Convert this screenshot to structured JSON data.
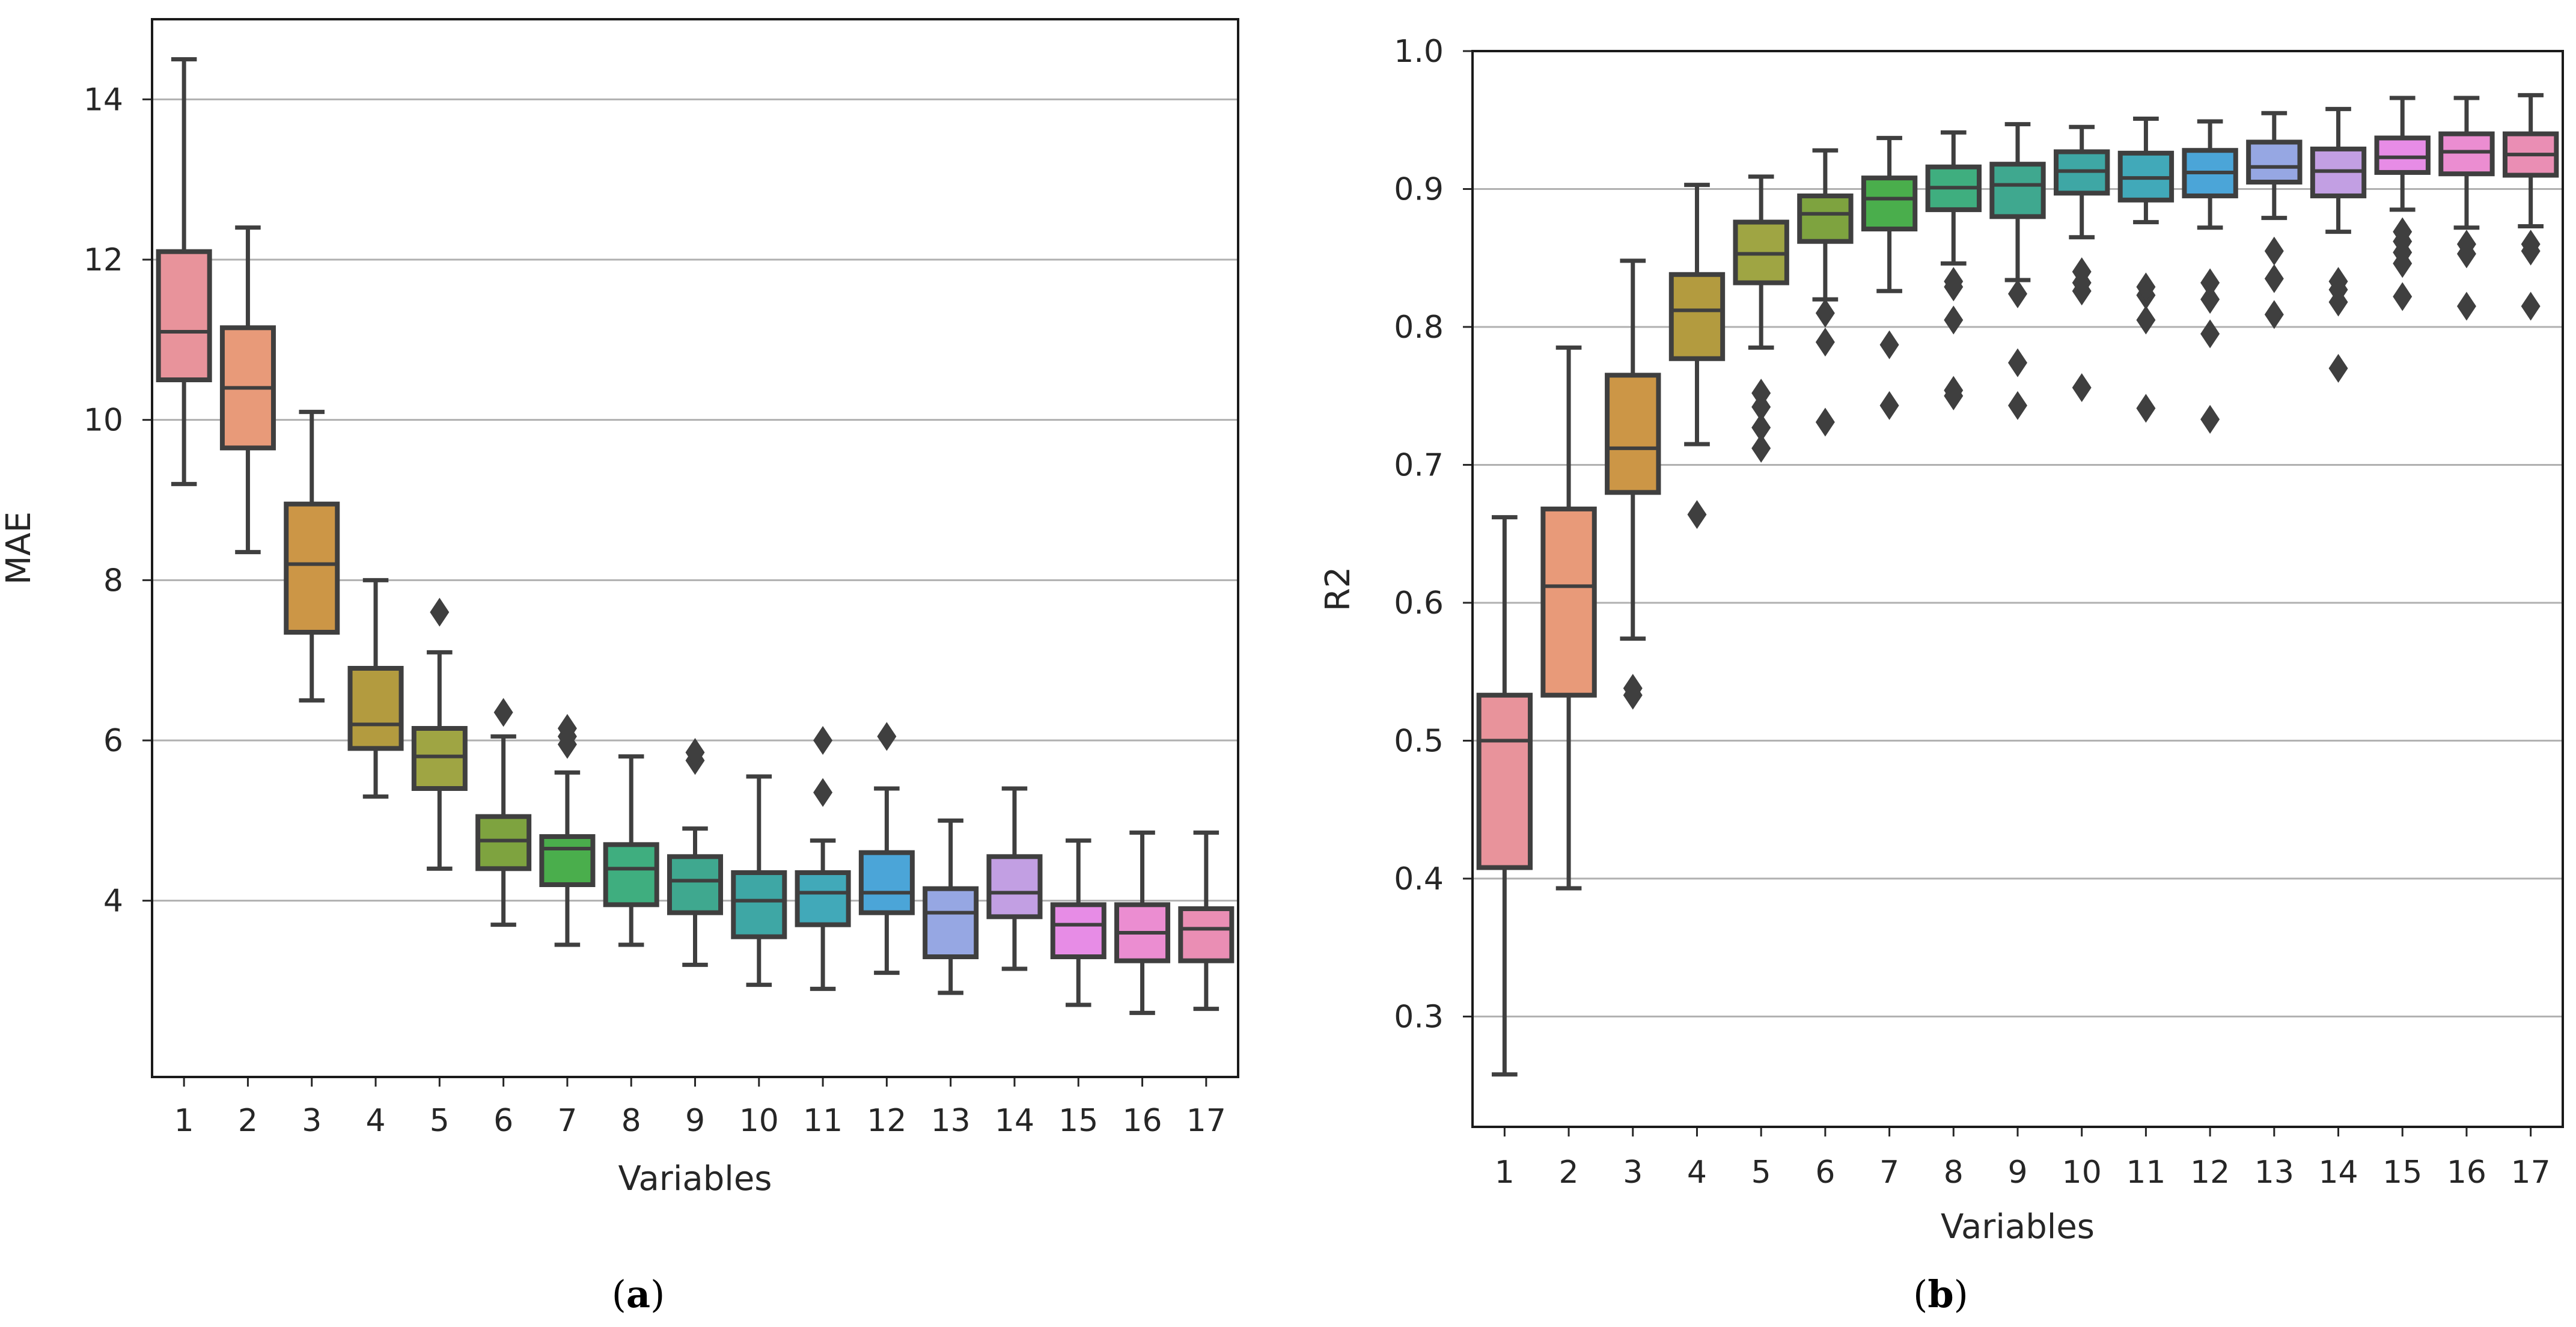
{
  "chart_data": [
    {
      "type": "boxplot",
      "panel_label": "a",
      "caption_open": "(",
      "caption_close": ")",
      "xlabel": "Variables",
      "ylabel": "MAE",
      "ylim": [
        1.8,
        15.0
      ],
      "yticks": [
        4,
        6,
        8,
        10,
        12,
        14
      ],
      "yticklabels": [
        "4",
        "6",
        "8",
        "10",
        "12",
        "14"
      ],
      "grid": "horizontal",
      "categories": [
        "1",
        "2",
        "3",
        "4",
        "5",
        "6",
        "7",
        "8",
        "9",
        "10",
        "11",
        "12",
        "13",
        "14",
        "15",
        "16",
        "17"
      ],
      "colors": [
        "#e8939b",
        "#e89a79",
        "#cc9646",
        "#b39b3f",
        "#9fa543",
        "#7ea33f",
        "#4aae4c",
        "#3fae7f",
        "#3fa88f",
        "#3ea7a5",
        "#41a9b9",
        "#4ba5d8",
        "#96a7e3",
        "#c29fe3",
        "#e78ce6",
        "#eb8dd1",
        "#ea8eb4"
      ],
      "boxes": [
        {
          "whislo": 9.2,
          "q1": 10.5,
          "med": 11.1,
          "q3": 12.1,
          "whishi": 14.5,
          "fliers": []
        },
        {
          "whislo": 8.35,
          "q1": 9.65,
          "med": 10.4,
          "q3": 11.15,
          "whishi": 12.4,
          "fliers": []
        },
        {
          "whislo": 6.5,
          "q1": 7.35,
          "med": 8.2,
          "q3": 8.95,
          "whishi": 10.1,
          "fliers": []
        },
        {
          "whislo": 5.3,
          "q1": 5.9,
          "med": 6.2,
          "q3": 6.9,
          "whishi": 8.0,
          "fliers": []
        },
        {
          "whislo": 4.4,
          "q1": 5.4,
          "med": 5.8,
          "q3": 6.15,
          "whishi": 7.1,
          "fliers": [
            7.6
          ]
        },
        {
          "whislo": 3.7,
          "q1": 4.4,
          "med": 4.75,
          "q3": 5.05,
          "whishi": 6.05,
          "fliers": [
            6.35
          ]
        },
        {
          "whislo": 3.45,
          "q1": 4.2,
          "med": 4.65,
          "q3": 4.8,
          "whishi": 5.6,
          "fliers": [
            5.95,
            6.05,
            6.15
          ]
        },
        {
          "whislo": 3.45,
          "q1": 3.95,
          "med": 4.4,
          "q3": 4.7,
          "whishi": 5.8,
          "fliers": []
        },
        {
          "whislo": 3.2,
          "q1": 3.85,
          "med": 4.25,
          "q3": 4.55,
          "whishi": 4.9,
          "fliers": [
            5.75,
            5.85
          ]
        },
        {
          "whislo": 2.95,
          "q1": 3.55,
          "med": 4.0,
          "q3": 4.35,
          "whishi": 5.55,
          "fliers": []
        },
        {
          "whislo": 2.9,
          "q1": 3.7,
          "med": 4.1,
          "q3": 4.35,
          "whishi": 4.75,
          "fliers": [
            5.35,
            6.0
          ]
        },
        {
          "whislo": 3.1,
          "q1": 3.85,
          "med": 4.1,
          "q3": 4.6,
          "whishi": 5.4,
          "fliers": [
            6.05
          ]
        },
        {
          "whislo": 2.85,
          "q1": 3.3,
          "med": 3.85,
          "q3": 4.15,
          "whishi": 5.0,
          "fliers": []
        },
        {
          "whislo": 3.15,
          "q1": 3.8,
          "med": 4.1,
          "q3": 4.55,
          "whishi": 5.4,
          "fliers": []
        },
        {
          "whislo": 2.7,
          "q1": 3.3,
          "med": 3.7,
          "q3": 3.95,
          "whishi": 4.75,
          "fliers": []
        },
        {
          "whislo": 2.6,
          "q1": 3.25,
          "med": 3.6,
          "q3": 3.95,
          "whishi": 4.85,
          "fliers": []
        },
        {
          "whislo": 2.65,
          "q1": 3.25,
          "med": 3.65,
          "q3": 3.9,
          "whishi": 4.85,
          "fliers": []
        }
      ]
    },
    {
      "type": "boxplot",
      "panel_label": "b",
      "caption_open": "(",
      "caption_close": ")",
      "xlabel": "Variables",
      "ylabel": "R2",
      "ylim": [
        0.22,
        1.0
      ],
      "yticks": [
        0.3,
        0.4,
        0.5,
        0.6,
        0.7,
        0.8,
        0.9,
        1.0
      ],
      "yticklabels": [
        "0.3",
        "0.4",
        "0.5",
        "0.6",
        "0.7",
        "0.8",
        "0.9",
        "1.0"
      ],
      "grid": "horizontal",
      "categories": [
        "1",
        "2",
        "3",
        "4",
        "5",
        "6",
        "7",
        "8",
        "9",
        "10",
        "11",
        "12",
        "13",
        "14",
        "15",
        "16",
        "17"
      ],
      "colors": [
        "#e8939b",
        "#e89a79",
        "#cc9646",
        "#b39b3f",
        "#9fa543",
        "#7ea33f",
        "#4aae4c",
        "#3fae7f",
        "#3fa88f",
        "#3ea7a5",
        "#41a9b9",
        "#4ba5d8",
        "#96a7e3",
        "#c29fe3",
        "#e78ce6",
        "#eb8dd1",
        "#ea8eb4"
      ],
      "boxes": [
        {
          "whislo": 0.258,
          "q1": 0.408,
          "med": 0.5,
          "q3": 0.533,
          "whishi": 0.662,
          "fliers": []
        },
        {
          "whislo": 0.393,
          "q1": 0.533,
          "med": 0.612,
          "q3": 0.668,
          "whishi": 0.785,
          "fliers": []
        },
        {
          "whislo": 0.574,
          "q1": 0.68,
          "med": 0.712,
          "q3": 0.765,
          "whishi": 0.848,
          "fliers": [
            0.533,
            0.538
          ]
        },
        {
          "whislo": 0.715,
          "q1": 0.777,
          "med": 0.812,
          "q3": 0.838,
          "whishi": 0.903,
          "fliers": [
            0.664
          ]
        },
        {
          "whislo": 0.785,
          "q1": 0.832,
          "med": 0.853,
          "q3": 0.876,
          "whishi": 0.909,
          "fliers": [
            0.712,
            0.727,
            0.742,
            0.752
          ]
        },
        {
          "whislo": 0.82,
          "q1": 0.862,
          "med": 0.882,
          "q3": 0.895,
          "whishi": 0.928,
          "fliers": [
            0.731,
            0.789,
            0.81
          ]
        },
        {
          "whislo": 0.826,
          "q1": 0.871,
          "med": 0.893,
          "q3": 0.908,
          "whishi": 0.937,
          "fliers": [
            0.743,
            0.787
          ]
        },
        {
          "whislo": 0.846,
          "q1": 0.885,
          "med": 0.901,
          "q3": 0.916,
          "whishi": 0.941,
          "fliers": [
            0.75,
            0.754,
            0.805,
            0.829,
            0.833
          ]
        },
        {
          "whislo": 0.834,
          "q1": 0.88,
          "med": 0.903,
          "q3": 0.918,
          "whishi": 0.947,
          "fliers": [
            0.743,
            0.774,
            0.824
          ]
        },
        {
          "whislo": 0.865,
          "q1": 0.897,
          "med": 0.913,
          "q3": 0.927,
          "whishi": 0.945,
          "fliers": [
            0.756,
            0.826,
            0.832,
            0.84
          ]
        },
        {
          "whislo": 0.876,
          "q1": 0.892,
          "med": 0.908,
          "q3": 0.926,
          "whishi": 0.951,
          "fliers": [
            0.741,
            0.805,
            0.823,
            0.829
          ]
        },
        {
          "whislo": 0.872,
          "q1": 0.895,
          "med": 0.912,
          "q3": 0.928,
          "whishi": 0.949,
          "fliers": [
            0.733,
            0.795,
            0.82,
            0.832
          ]
        },
        {
          "whislo": 0.879,
          "q1": 0.905,
          "med": 0.916,
          "q3": 0.934,
          "whishi": 0.955,
          "fliers": [
            0.809,
            0.835,
            0.855
          ]
        },
        {
          "whislo": 0.869,
          "q1": 0.895,
          "med": 0.913,
          "q3": 0.929,
          "whishi": 0.958,
          "fliers": [
            0.77,
            0.818,
            0.827,
            0.833
          ]
        },
        {
          "whislo": 0.885,
          "q1": 0.912,
          "med": 0.923,
          "q3": 0.937,
          "whishi": 0.966,
          "fliers": [
            0.822,
            0.846,
            0.854,
            0.862,
            0.869
          ]
        },
        {
          "whislo": 0.872,
          "q1": 0.911,
          "med": 0.927,
          "q3": 0.94,
          "whishi": 0.966,
          "fliers": [
            0.815,
            0.853,
            0.86
          ]
        },
        {
          "whislo": 0.873,
          "q1": 0.91,
          "med": 0.925,
          "q3": 0.94,
          "whishi": 0.968,
          "fliers": [
            0.815,
            0.855,
            0.86
          ]
        }
      ]
    }
  ]
}
